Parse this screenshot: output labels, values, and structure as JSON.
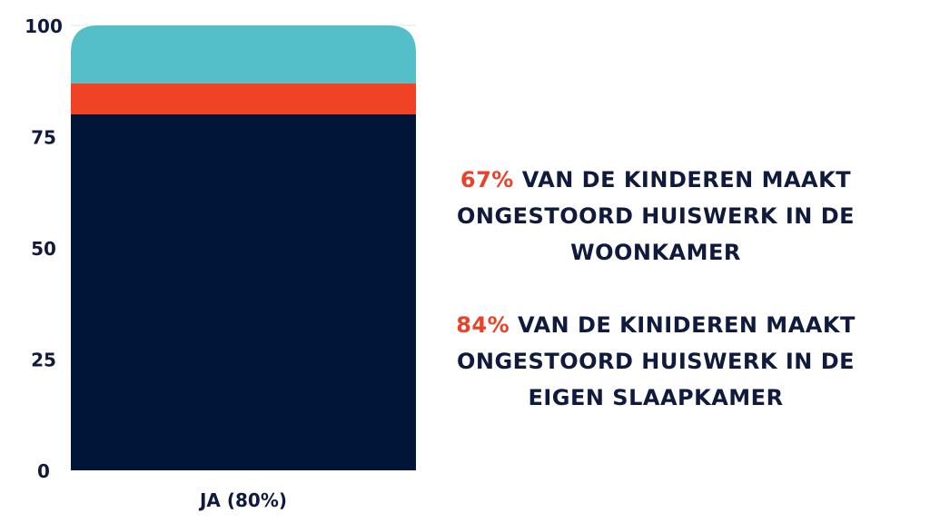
{
  "chart_data": {
    "type": "bar",
    "stacked": true,
    "categories": [
      "JA (80%)"
    ],
    "series": [
      {
        "values": [
          80
        ],
        "color": "#011538"
      },
      {
        "values": [
          7
        ],
        "color": "#f04326"
      },
      {
        "values": [
          13
        ],
        "color": "#55bfc9"
      }
    ],
    "ylim": [
      0,
      100
    ],
    "yticks": [
      "0",
      "25",
      "50",
      "75",
      "100"
    ],
    "grid": false,
    "legend": "none"
  },
  "stats": [
    {
      "percent": "67%",
      "text": "van de kinderen maakt ongestoord huiswerk in de woonkamer"
    },
    {
      "percent": "84%",
      "text": "van de kinideren maakt ongestoord huiswerk in de eigen slaapkamer"
    }
  ]
}
